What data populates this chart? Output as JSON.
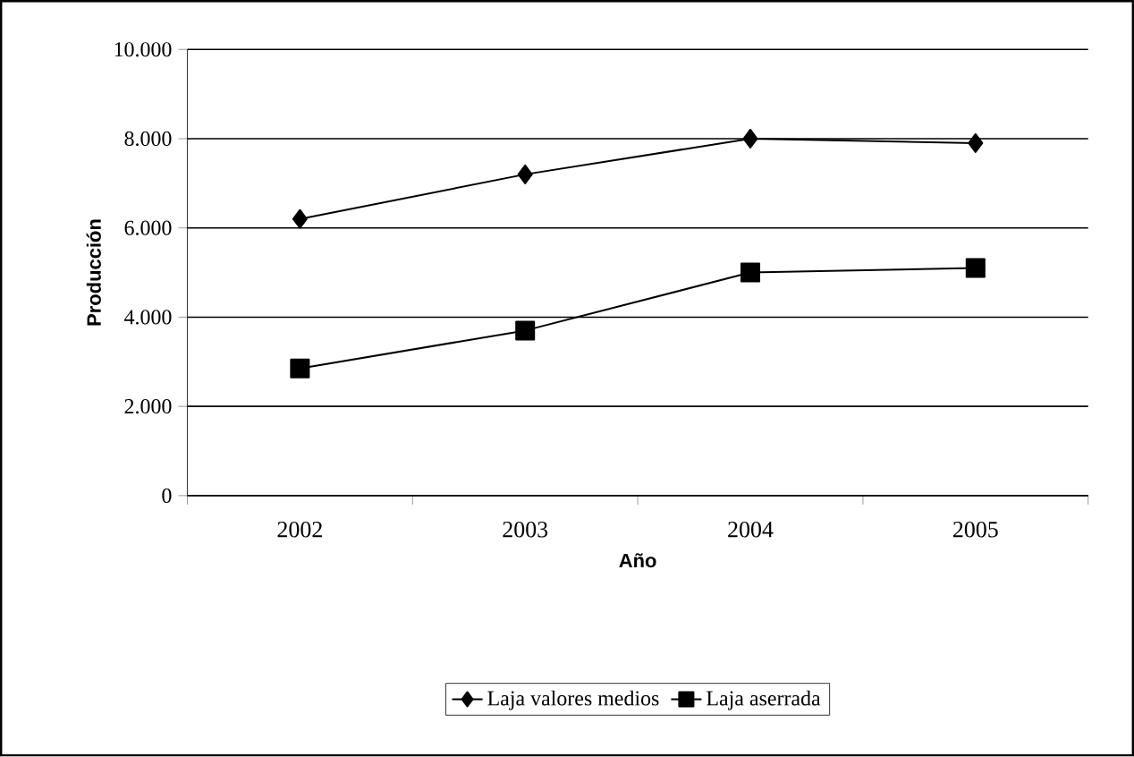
{
  "chart_data": {
    "type": "line",
    "xlabel": "Año",
    "ylabel": "Producción",
    "categories": [
      "2002",
      "2003",
      "2004",
      "2005"
    ],
    "series": [
      {
        "name": "Laja valores medios",
        "color": "#000000",
        "marker": "diamond",
        "values": [
          6200,
          7200,
          8000,
          7900
        ]
      },
      {
        "name": "Laja aserrada",
        "color": "#000000",
        "marker": "square",
        "values": [
          2850,
          3700,
          5000,
          5100
        ]
      }
    ],
    "ylim": [
      0,
      10000
    ],
    "yticks": [
      {
        "value": 0,
        "label": "0"
      },
      {
        "value": 2000,
        "label": "2.000"
      },
      {
        "value": 4000,
        "label": "4.000"
      },
      {
        "value": 6000,
        "label": "6.000"
      },
      {
        "value": 8000,
        "label": "8.000"
      },
      {
        "value": 10000,
        "label": "10.000"
      }
    ],
    "grid": "y",
    "legend": "bottom",
    "line_style": "solid"
  }
}
